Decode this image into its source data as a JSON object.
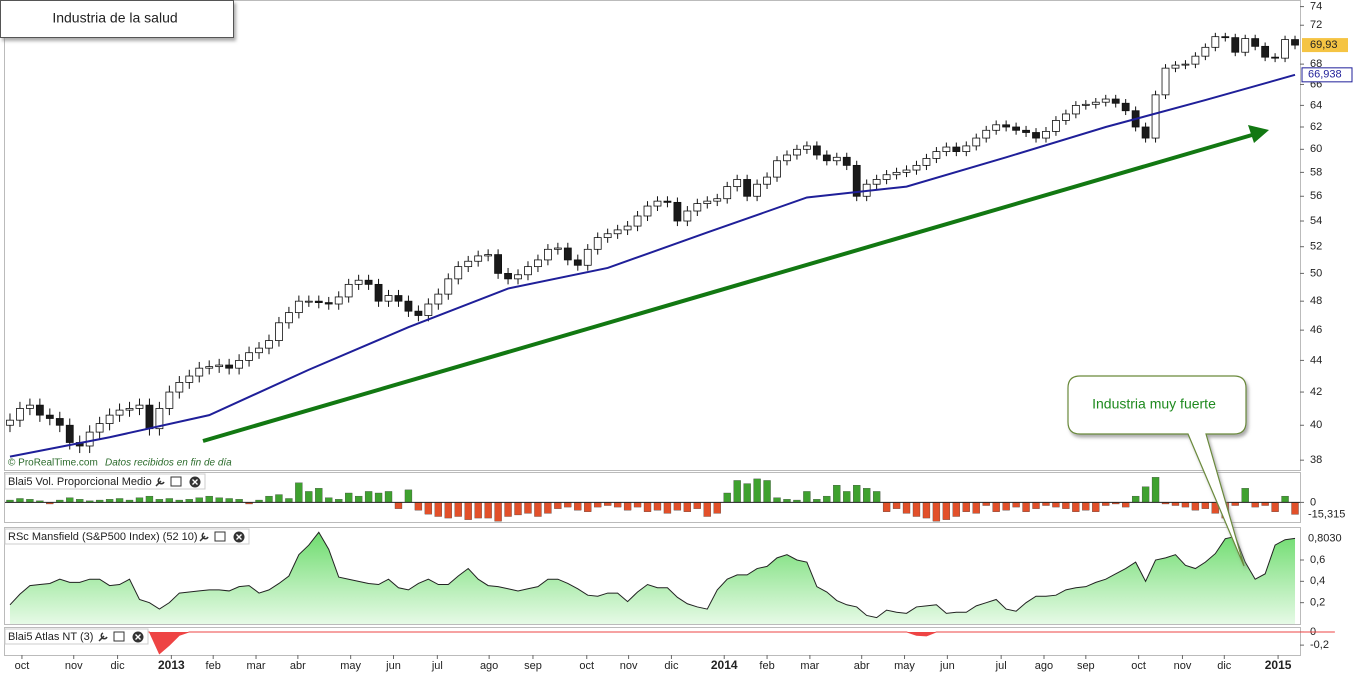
{
  "chart_data": [
    {
      "type": "candlestick",
      "title": "Industria de la salud",
      "source": "© ProRealTime.com",
      "source_note": "Datos recibidos en fin de día",
      "annotation": "Industria muy fuerte",
      "log_scale": true,
      "grid": false,
      "xlim": [
        -0.5,
        129.5
      ],
      "xticks": [
        {
          "value": 1.2,
          "label": "oct"
        },
        {
          "value": 6.4,
          "label": "nov"
        },
        {
          "value": 10.8,
          "label": "dic"
        },
        {
          "value": 16.2,
          "label": "2013"
        },
        {
          "value": 20.4,
          "label": "feb"
        },
        {
          "value": 24.7,
          "label": "mar"
        },
        {
          "value": 28.9,
          "label": "abr"
        },
        {
          "value": 34.2,
          "label": "may"
        },
        {
          "value": 38.5,
          "label": "jun"
        },
        {
          "value": 42.9,
          "label": "jul"
        },
        {
          "value": 48.1,
          "label": "ago"
        },
        {
          "value": 52.5,
          "label": "sep"
        },
        {
          "value": 57.9,
          "label": "oct"
        },
        {
          "value": 62.1,
          "label": "nov"
        },
        {
          "value": 66.4,
          "label": "dic"
        },
        {
          "value": 71.7,
          "label": "2014"
        },
        {
          "value": 76.0,
          "label": "feb"
        },
        {
          "value": 80.3,
          "label": "mar"
        },
        {
          "value": 85.5,
          "label": "abr"
        },
        {
          "value": 89.8,
          "label": "may"
        },
        {
          "value": 94.1,
          "label": "jun"
        },
        {
          "value": 99.5,
          "label": "jul"
        },
        {
          "value": 103.8,
          "label": "ago"
        },
        {
          "value": 108.0,
          "label": "sep"
        },
        {
          "value": 113.3,
          "label": "oct"
        },
        {
          "value": 117.7,
          "label": "nov"
        },
        {
          "value": 121.9,
          "label": "dic"
        },
        {
          "value": 127.3,
          "label": "2015"
        }
      ],
      "ylim": [
        37.4,
        74.5
      ],
      "yticks": [
        38,
        40,
        42,
        44,
        46,
        48,
        50,
        52,
        54,
        56,
        58,
        60,
        62,
        64,
        66,
        68,
        72,
        74
      ],
      "up_color": "#ffffff",
      "down_color": "#1a1a1a",
      "open": [
        40.0,
        40.3,
        41.0,
        41.2,
        40.6,
        40.4,
        40.0,
        39.0,
        38.8,
        39.6,
        40.1,
        40.6,
        40.9,
        41.0,
        41.2,
        39.8,
        41.0,
        42.0,
        42.6,
        43.0,
        43.5,
        43.6,
        43.7,
        43.5,
        44.0,
        44.5,
        44.8,
        45.3,
        46.5,
        47.2,
        48.0,
        48.0,
        47.9,
        47.8,
        48.3,
        49.2,
        49.5,
        49.2,
        48.0,
        48.4,
        48.0,
        47.3,
        47.0,
        47.8,
        48.5,
        49.6,
        50.5,
        50.9,
        51.3,
        51.4,
        50.0,
        49.6,
        49.9,
        50.5,
        51.0,
        51.8,
        51.9,
        51.0,
        50.6,
        51.8,
        52.7,
        53.0,
        53.3,
        53.6,
        54.4,
        55.2,
        55.6,
        55.5,
        54.0,
        54.8,
        55.4,
        55.6,
        55.8,
        56.8,
        57.4,
        56.0,
        57.0,
        57.6,
        59.0,
        59.5,
        60.0,
        60.3,
        59.5,
        59.0,
        59.3,
        58.6,
        56.0,
        57.0,
        57.4,
        57.8,
        58.0,
        58.2,
        58.6,
        59.2,
        59.8,
        60.2,
        59.8,
        60.3,
        61.0,
        61.7,
        62.2,
        62.0,
        61.7,
        61.5,
        61.0,
        61.6,
        62.6,
        63.2,
        64.0,
        64.1,
        64.3,
        64.6,
        64.2,
        63.5,
        62.0,
        61.0,
        65.0,
        67.6,
        67.9,
        68.0,
        68.8,
        69.7,
        70.8,
        70.7,
        69.2,
        70.6,
        69.8,
        68.7,
        68.6,
        70.5
      ],
      "high": [
        40.7,
        41.4,
        41.6,
        41.6,
        41.0,
        40.8,
        40.4,
        39.4,
        40.0,
        40.5,
        41.0,
        41.3,
        41.4,
        41.6,
        41.6,
        41.4,
        42.4,
        43.0,
        43.4,
        43.9,
        44.0,
        44.1,
        44.1,
        44.4,
        44.9,
        45.2,
        45.7,
        46.9,
        47.6,
        48.4,
        48.4,
        48.4,
        48.3,
        48.7,
        49.6,
        49.9,
        49.9,
        49.6,
        48.8,
        48.8,
        48.4,
        47.7,
        48.2,
        48.9,
        50.0,
        50.9,
        51.3,
        51.7,
        51.8,
        51.8,
        50.4,
        50.3,
        50.9,
        51.4,
        52.2,
        52.3,
        52.3,
        51.4,
        52.2,
        53.1,
        53.4,
        53.7,
        54.0,
        54.8,
        55.6,
        56.0,
        56.0,
        55.9,
        55.2,
        55.8,
        56.0,
        56.2,
        57.2,
        57.8,
        57.8,
        57.4,
        58.0,
        59.4,
        59.9,
        60.4,
        60.7,
        60.7,
        59.9,
        59.7,
        59.7,
        59.0,
        57.4,
        57.8,
        58.2,
        58.4,
        58.6,
        59.0,
        59.6,
        60.2,
        60.6,
        60.6,
        60.7,
        61.4,
        62.1,
        62.6,
        62.6,
        62.4,
        62.1,
        61.9,
        62.0,
        63.0,
        63.6,
        64.4,
        64.5,
        64.7,
        65.0,
        65.0,
        64.6,
        63.9,
        62.4,
        65.4,
        68.0,
        68.3,
        68.4,
        69.2,
        70.1,
        71.2,
        71.2,
        71.1,
        71.0,
        71.0,
        70.2,
        69.1,
        70.9,
        70.9
      ],
      "low": [
        39.6,
        39.9,
        40.6,
        40.2,
        40.0,
        39.6,
        38.6,
        38.4,
        38.4,
        39.2,
        39.7,
        40.2,
        40.5,
        40.6,
        39.4,
        39.4,
        40.6,
        41.6,
        42.2,
        42.6,
        43.1,
        43.2,
        43.1,
        43.1,
        43.6,
        44.1,
        44.4,
        44.9,
        46.1,
        46.8,
        47.6,
        47.5,
        47.4,
        47.4,
        47.9,
        48.8,
        48.8,
        47.6,
        47.6,
        47.6,
        46.9,
        46.6,
        46.6,
        47.4,
        48.1,
        49.2,
        50.1,
        50.5,
        50.9,
        49.6,
        49.2,
        49.2,
        49.5,
        50.1,
        50.6,
        51.4,
        50.6,
        50.2,
        50.2,
        51.4,
        52.3,
        52.6,
        52.9,
        53.2,
        54.0,
        54.8,
        55.1,
        53.6,
        53.6,
        54.4,
        55.0,
        55.2,
        55.4,
        56.4,
        55.6,
        55.6,
        56.6,
        57.2,
        58.6,
        59.1,
        59.6,
        59.1,
        58.6,
        58.6,
        58.2,
        55.6,
        55.6,
        56.6,
        57.0,
        57.4,
        57.6,
        57.8,
        58.2,
        58.8,
        59.4,
        59.4,
        59.4,
        59.9,
        60.6,
        61.3,
        61.6,
        61.3,
        61.1,
        60.6,
        60.6,
        61.2,
        62.2,
        62.8,
        63.6,
        63.7,
        63.9,
        63.8,
        63.1,
        61.6,
        60.6,
        60.6,
        64.6,
        67.2,
        67.5,
        67.6,
        68.4,
        69.3,
        70.3,
        68.8,
        68.8,
        69.4,
        68.3,
        68.2,
        68.2,
        69.5
      ],
      "close": [
        40.3,
        41.0,
        41.2,
        40.6,
        40.4,
        40.0,
        39.0,
        38.8,
        39.6,
        40.1,
        40.6,
        40.9,
        41.0,
        41.2,
        39.8,
        41.0,
        42.0,
        42.6,
        43.0,
        43.5,
        43.6,
        43.7,
        43.5,
        44.0,
        44.5,
        44.8,
        45.3,
        46.5,
        47.2,
        48.0,
        48.0,
        47.9,
        47.8,
        48.3,
        49.2,
        49.5,
        49.2,
        48.0,
        48.4,
        48.0,
        47.3,
        47.0,
        47.8,
        48.5,
        49.6,
        50.5,
        50.9,
        51.3,
        51.4,
        50.0,
        49.6,
        49.9,
        50.5,
        51.0,
        51.8,
        51.9,
        51.0,
        50.6,
        51.8,
        52.7,
        53.0,
        53.3,
        53.6,
        54.4,
        55.2,
        55.6,
        55.5,
        54.0,
        54.8,
        55.4,
        55.6,
        55.8,
        56.8,
        57.4,
        56.0,
        57.0,
        57.6,
        59.0,
        59.5,
        60.0,
        60.3,
        59.5,
        59.0,
        59.3,
        58.6,
        56.0,
        57.0,
        57.4,
        57.8,
        58.0,
        58.2,
        58.6,
        59.2,
        59.8,
        60.2,
        59.8,
        60.3,
        61.0,
        61.7,
        62.2,
        62.0,
        61.7,
        61.5,
        61.0,
        61.6,
        62.6,
        63.2,
        64.0,
        64.1,
        64.3,
        64.6,
        64.2,
        63.5,
        62.0,
        61.0,
        65.0,
        67.6,
        67.9,
        68.0,
        68.8,
        69.7,
        70.8,
        70.7,
        69.2,
        70.6,
        69.8,
        68.7,
        68.6,
        70.5,
        69.93
      ],
      "close_label": {
        "value": 69.93,
        "label": "69,93"
      },
      "moving_average": {
        "color": "#1f1f99",
        "x": [
          0,
          10,
          20,
          30,
          40,
          50,
          60,
          70,
          80,
          90,
          100,
          110,
          120,
          129
        ],
        "values": [
          38.2,
          39.3,
          40.6,
          43.4,
          46.2,
          48.9,
          50.4,
          53.1,
          55.9,
          56.8,
          59.3,
          62.0,
          64.5,
          66.938
        ]
      },
      "ma_label": {
        "value": 66.938,
        "label": "66,938"
      }
    },
    {
      "type": "bar",
      "title": "Blai5 Vol. Proporcional Medio",
      "ylim": [
        -25,
        37.5
      ],
      "yticks": [
        0
      ],
      "up_color": "#3fa12f",
      "down_color": "#e2502a",
      "values": [
        3,
        5,
        4,
        2,
        -2,
        3,
        6,
        4,
        2,
        3,
        4,
        5,
        3,
        6,
        8,
        4,
        5,
        3,
        4,
        6,
        8,
        6,
        5,
        4,
        -2,
        3,
        8,
        10,
        5,
        25,
        14,
        18,
        6,
        4,
        12,
        8,
        14,
        12,
        14,
        -8,
        16,
        -10,
        -15,
        -18,
        -20,
        -18,
        -22,
        -20,
        -20,
        -24,
        -18,
        -16,
        -14,
        -18,
        -14,
        -8,
        -6,
        -10,
        -12,
        -6,
        -4,
        -6,
        -10,
        -6,
        -12,
        -10,
        -14,
        -10,
        -12,
        -8,
        -18,
        -14,
        12,
        28,
        24,
        30,
        28,
        6,
        4,
        3,
        14,
        4,
        8,
        22,
        14,
        22,
        18,
        14,
        -12,
        -8,
        -14,
        -18,
        -20,
        -24,
        -22,
        -18,
        -12,
        -14,
        -4,
        -12,
        -10,
        -6,
        -12,
        -8,
        -4,
        -6,
        -8,
        -12,
        -10,
        -12,
        -4,
        -2,
        -6,
        8,
        20,
        32,
        -2,
        -4,
        -6,
        -10,
        -8,
        -14,
        -20,
        -4,
        18,
        -6,
        -4,
        -12,
        8,
        -15.315
      ],
      "last_label": {
        "value": -15.315,
        "label": "-15,315"
      }
    },
    {
      "type": "area",
      "title": "RSc Mansfield (S&P500 Index) (52 10)",
      "ylim": [
        0,
        0.9
      ],
      "color": "#7ee07e",
      "yticks": [
        {
          "value": 0.2,
          "label": "0,2"
        },
        {
          "value": 0.4,
          "label": "0,4"
        },
        {
          "value": 0.6,
          "label": "0,6"
        }
      ],
      "values": [
        0.18,
        0.28,
        0.36,
        0.37,
        0.38,
        0.42,
        0.39,
        0.39,
        0.42,
        0.42,
        0.36,
        0.37,
        0.42,
        0.23,
        0.2,
        0.14,
        0.2,
        0.29,
        0.3,
        0.31,
        0.32,
        0.32,
        0.31,
        0.35,
        0.36,
        0.29,
        0.32,
        0.38,
        0.45,
        0.65,
        0.74,
        0.86,
        0.7,
        0.44,
        0.42,
        0.4,
        0.38,
        0.37,
        0.42,
        0.34,
        0.32,
        0.38,
        0.42,
        0.37,
        0.37,
        0.45,
        0.52,
        0.42,
        0.36,
        0.35,
        0.33,
        0.31,
        0.33,
        0.35,
        0.42,
        0.42,
        0.38,
        0.33,
        0.27,
        0.26,
        0.29,
        0.29,
        0.21,
        0.3,
        0.37,
        0.34,
        0.34,
        0.25,
        0.19,
        0.16,
        0.14,
        0.32,
        0.42,
        0.46,
        0.46,
        0.52,
        0.54,
        0.62,
        0.65,
        0.6,
        0.58,
        0.35,
        0.3,
        0.22,
        0.18,
        0.16,
        0.08,
        0.06,
        0.13,
        0.11,
        0.1,
        0.16,
        0.17,
        0.18,
        0.1,
        0.11,
        0.11,
        0.17,
        0.2,
        0.23,
        0.14,
        0.12,
        0.2,
        0.26,
        0.26,
        0.27,
        0.32,
        0.34,
        0.35,
        0.39,
        0.42,
        0.47,
        0.52,
        0.58,
        0.4,
        0.6,
        0.62,
        0.65,
        0.55,
        0.52,
        0.58,
        0.66,
        0.8,
        0.82,
        0.58,
        0.42,
        0.47,
        0.74,
        0.79,
        0.803
      ],
      "last_label": {
        "value": 0.803,
        "label": "0,8030"
      }
    },
    {
      "type": "area",
      "title": "Blai5 Atlas NT (3)",
      "ylim": [
        -0.35,
        0.06
      ],
      "color": "#ee4444",
      "yticks": [
        0,
        {
          "value": -0.2,
          "label": "-0,2"
        }
      ],
      "values": [
        0,
        0,
        0,
        0,
        0,
        0,
        0,
        0,
        0,
        0,
        0,
        0,
        0,
        0,
        0,
        -0.33,
        -0.2,
        -0.05,
        0,
        0,
        0,
        0,
        0,
        0,
        0,
        0,
        0,
        0,
        0,
        0,
        0,
        0,
        0,
        0,
        0,
        0,
        0,
        0,
        0,
        0,
        0,
        0,
        0,
        0,
        0,
        0,
        0,
        0,
        0,
        0,
        0,
        0,
        0,
        0,
        0,
        0,
        0,
        0,
        0,
        0,
        0,
        0,
        0,
        0,
        0,
        0,
        0,
        0,
        0,
        0,
        0,
        0,
        0,
        0,
        0,
        0,
        0,
        0,
        0,
        0,
        0,
        0,
        0,
        0,
        0,
        0,
        0,
        0,
        0,
        0,
        0,
        -0.05,
        -0.06,
        0,
        0,
        0,
        0,
        0,
        0,
        0,
        0,
        0,
        0,
        0,
        0,
        0,
        0,
        0,
        0,
        0,
        0,
        0,
        0,
        0,
        0,
        0,
        0,
        0,
        0,
        0,
        0,
        0,
        0,
        0,
        0,
        0,
        0,
        0,
        0,
        0,
        0,
        0,
        0,
        0
      ]
    }
  ]
}
